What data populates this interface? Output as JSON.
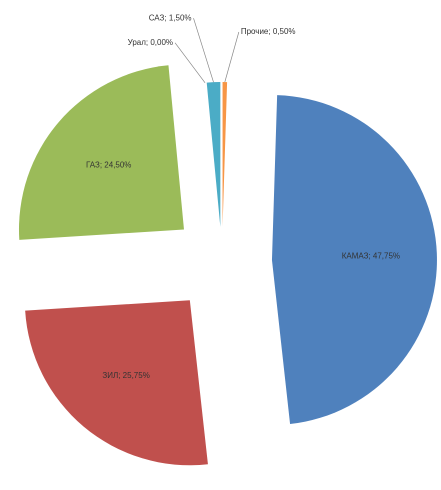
{
  "chart_data": {
    "type": "pie",
    "values": [
      0.5,
      47.75,
      25.75,
      24.5,
      0,
      1.5
    ],
    "value_labels": [
      "Прочие; 0,50%",
      "КАМАЗ; 47,75%",
      "ЗИЛ; 25,75%",
      "ГАЗ; 24,50%",
      "Урал; 0,00%",
      "САЗ; 1,50%"
    ],
    "colors": [
      "#f79646",
      "#4f81bd",
      "#c0504d",
      "#9bbb59",
      "#8064a2",
      "#4bacc6"
    ]
  }
}
